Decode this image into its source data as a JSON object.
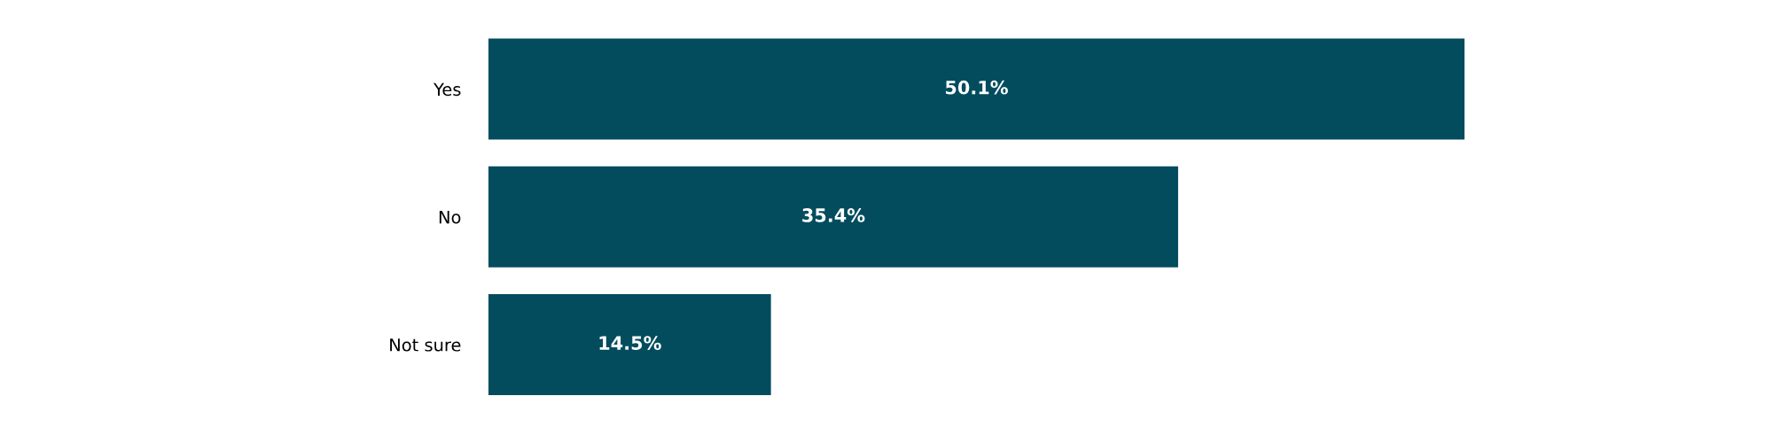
{
  "chart_data": {
    "type": "bar",
    "orientation": "horizontal",
    "categories": [
      "Yes",
      "No",
      "Not sure"
    ],
    "values": [
      50.1,
      35.4,
      14.5
    ],
    "color": "#024c5e",
    "value_labels": [
      "50.1%",
      "35.4%",
      "14.5%"
    ]
  }
}
